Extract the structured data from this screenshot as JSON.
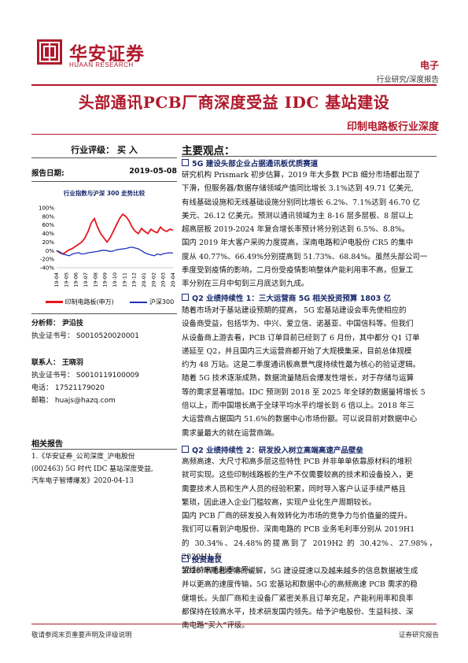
{
  "brand": {
    "cn": "华安证券",
    "en": "HUAAN RESEARCH"
  },
  "header": {
    "sector": "电子",
    "report_type": "行业研究/深度报告"
  },
  "title": "头部通讯PCB厂商深度受益 IDC 基站建设",
  "subtitle": "印制电路板行业深度",
  "left": {
    "rating": "行业评级：  买  入",
    "report_date_label": "报告日期:",
    "report_date": "2019-05-08",
    "chart_title": "行业指数与沪深 300 走势比较",
    "analyst_label": "分析师：",
    "analyst_name": "尹沿技",
    "analyst_cert": "执业证书号： S0010520020001",
    "contact_label": "联系人：",
    "contact_name": "王晓羽",
    "contact_cert": "执业证书号： S0010119100009",
    "contact_phone": "电话： 17521179020",
    "contact_email": "邮箱： huajs@hazq.com",
    "related_title": "相关报告",
    "related_items": [
      "1.《华安证券_公司深度_沪电股份",
      "(002463) 5G 时代 IDC 基站深度受益,",
      "汽车电子智博爆发》2020-04-13"
    ]
  },
  "chart_data": {
    "type": "line",
    "title": "行业指数与沪深 300 走势比较",
    "yticks": [
      "100%",
      "80%",
      "60%",
      "40%",
      "20%",
      "0%",
      "-20%",
      "-40%"
    ],
    "ylim": [
      -40,
      100
    ],
    "xticks": [
      "19-04",
      "19-05",
      "19-06",
      "19-07",
      "19-08",
      "19-09",
      "19-10",
      "19-11",
      "19-12",
      "20-01",
      "20-02",
      "20-03",
      "20-04"
    ],
    "series": [
      {
        "name": "印制电路板(申万)",
        "color": "#e8141e",
        "values": [
          0,
          -5,
          -8,
          -3,
          2,
          5,
          10,
          15,
          20,
          30,
          45,
          65,
          75,
          55,
          40,
          30,
          20,
          30,
          45,
          60,
          75,
          85,
          80,
          70,
          55,
          45,
          40,
          52,
          45,
          40,
          50,
          45,
          42,
          55,
          48,
          45,
          50,
          48
        ]
      },
      {
        "name": "沪深300",
        "color": "#1d2fb8",
        "values": [
          0,
          -3,
          -8,
          -10,
          -12,
          -8,
          -6,
          -5,
          -8,
          -7,
          -5,
          -4,
          -3,
          -2,
          0,
          1,
          0,
          -2,
          -1,
          2,
          3,
          4,
          5,
          7,
          8,
          6,
          4,
          0,
          -5,
          -8,
          -10,
          -12,
          -8,
          -10,
          -7,
          -6,
          -5,
          -6
        ]
      }
    ]
  },
  "main": {
    "heading": "主要观点：",
    "sec1_title": "5G 建设头部企业占据通讯板优质赛道",
    "sec1_lines": [
      "研究机构 Prismark 初步估算，2019 年大多数 PCB 细分市场都出现了",
      "下滑，但服务器/数据存储领域产值同比增长 3.1%达到 49.71 亿美元,",
      "有线基础设施和无线基础设施分别同比增长 6.2%、7.1%达到 46.70 亿",
      "美元、26.12 亿美元。预测以通讯领域为主 8-16 层多层板、8 层以上",
      "超高层板 2019-2024 年复合增长率预计将分别达到 6.5%、8.8%。",
      "国内 2019 年大客户采购力度提高，深南电路和沪电股份 CR5 的集中",
      "度从 40.77%、66.49%分别提高到 51.73%、68.84%。虽然头部公司一",
      "季度受到疫情的影响，二月份受疫情影响整体产能利用率不高，但复工",
      "率分别在三月中旬到三月底达到九成。"
    ],
    "sec2_title": "Q2 业绩持续性 1：三大运营商 5G 相关投资预算 1803 亿",
    "sec2_lines": [
      "随着市场对于基站建设预期的提高，  5G 宏基站建设会率先使相应的",
      "设备商受益，包括华为、中兴、爱立信、诺基亚、中国信科等。但我们",
      "从设备商上游去看，PCB 订单目前已经到了 6 月份，其中都分 Q1 订单",
      "递延至 Q2，并且国内三大运营商都开始了大规模集采，目前总体规模",
      "约为 48 万站。这是二季度通讯板高景气度持续性最为核心的验证逻辑。",
      "随着 5G 技术逐渐成熟，数据流量随后会爆发性增长，对于存储与运算",
      "等的需求显著增加。IDC 预测到 2018 至 2025 年全球的数据量将增长 5",
      "倍以上，而中国增长高于全球平均水平约增长到 6 倍以上。2018 年三",
      "大运营商占据国内 51.6%的数据中心市场份额。可以说目前对数据中心",
      "需求量最大的就在运营商端。"
    ],
    "sec3_title": "Q2 业绩持续性 2：研发投入树立高端高速产品壁垒",
    "sec3_lines": [
      "高频高速、大尺寸和高多层这些特性 PCB 并非单单依靠原材料的堆积",
      "就可实现。这些印制线路板的生产不仅需要较高的技术和设备投入，更",
      "需要技术人员和生产人员的经验积累，同时导入客户认证手续严格且",
      "繁琐，因此进入企业门槛较高，实现产业化生产周期较长。",
      "国内 PCB 厂商的研发投入有效转化为市场的竞争力与价值量的提升。",
      "我们可以看到沪电股份、深南电路的  PCB  业务毛利率分别从 2019H1",
      "的 30.34%、24.48%的提高到了 2019H2 的 30.42%、27.98%，2020H1 有",
      "望维持高毛利率水平。"
    ],
    "sec4_title": "投资建议",
    "sec4_lines": [
      "2020 年随着疫情的缓解，5G 建设提速以及越来越多的信息数据被生成",
      "并以更高的速度传输，5G 宏基站和数据中心的高频高速 PCB 需求的稳",
      "健增长。头部厂商和主设备厂紧密关系且订单充足，产能利用率和良率",
      "都保持在较高水平，技术研发国内领先。给予沪电股份、生益科技、深",
      "南电路“买入”评级。"
    ]
  },
  "footer": {
    "left": "敬请参阅末页重要声明及评级说明",
    "right": "证券研究报告"
  }
}
